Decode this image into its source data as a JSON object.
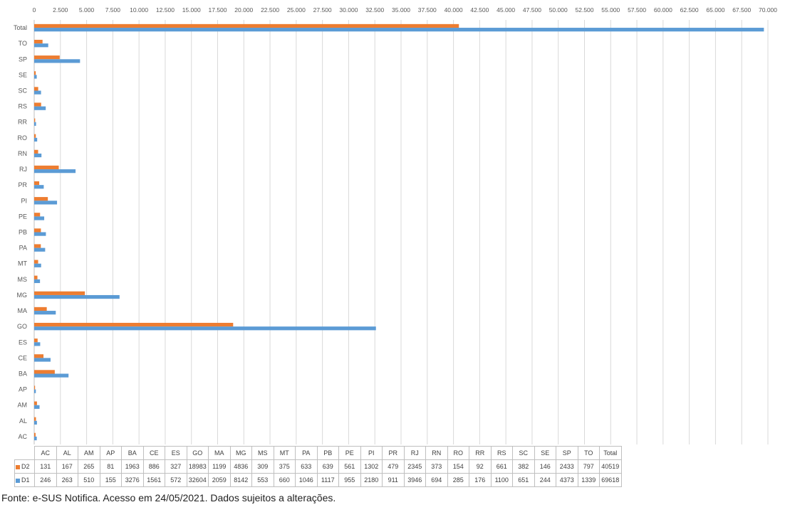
{
  "chart_data": {
    "type": "bar",
    "orientation": "horizontal",
    "categories": [
      "AC",
      "AL",
      "AM",
      "AP",
      "BA",
      "CE",
      "ES",
      "GO",
      "MA",
      "MG",
      "MS",
      "MT",
      "PA",
      "PB",
      "PE",
      "PI",
      "PR",
      "RJ",
      "RN",
      "RO",
      "RR",
      "RS",
      "SC",
      "SE",
      "SP",
      "TO",
      "Total"
    ],
    "series": [
      {
        "name": "D2",
        "color": "#ED7D31",
        "values": [
          131,
          167,
          265,
          81,
          1963,
          886,
          327,
          18983,
          1199,
          4836,
          309,
          375,
          633,
          639,
          561,
          1302,
          479,
          2345,
          373,
          154,
          92,
          661,
          382,
          146,
          2433,
          797,
          40519
        ]
      },
      {
        "name": "D1",
        "color": "#5B9BD5",
        "values": [
          246,
          263,
          510,
          155,
          3276,
          1561,
          572,
          32604,
          2059,
          8142,
          553,
          660,
          1046,
          1117,
          955,
          2180,
          911,
          3946,
          694,
          285,
          176,
          1100,
          651,
          244,
          4373,
          1339,
          69618
        ]
      }
    ],
    "xlim": [
      0,
      70000
    ],
    "xticks": [
      0,
      2500,
      5000,
      7500,
      10000,
      12500,
      15000,
      17500,
      20000,
      22500,
      25000,
      27500,
      30000,
      32500,
      35000,
      37500,
      40000,
      42500,
      45000,
      47500,
      50000,
      52500,
      55000,
      57500,
      60000,
      62500,
      65000,
      67500,
      70000
    ],
    "xtick_labels": [
      "0",
      "2.500",
      "5.000",
      "7.500",
      "10.000",
      "12.500",
      "15.000",
      "17.500",
      "20.000",
      "22.500",
      "25.000",
      "27.500",
      "30.000",
      "32.500",
      "35.000",
      "37.500",
      "40.000",
      "42.500",
      "45.000",
      "47.500",
      "50.000",
      "52.500",
      "55.000",
      "57.500",
      "60.000",
      "62.500",
      "65.000",
      "67.500",
      "70.000"
    ],
    "grid": true,
    "legend": "data-table-below"
  },
  "source_note": "Fonte: e-SUS Notifica. Acesso em 24/05/2021. Dados sujeitos a alterações."
}
